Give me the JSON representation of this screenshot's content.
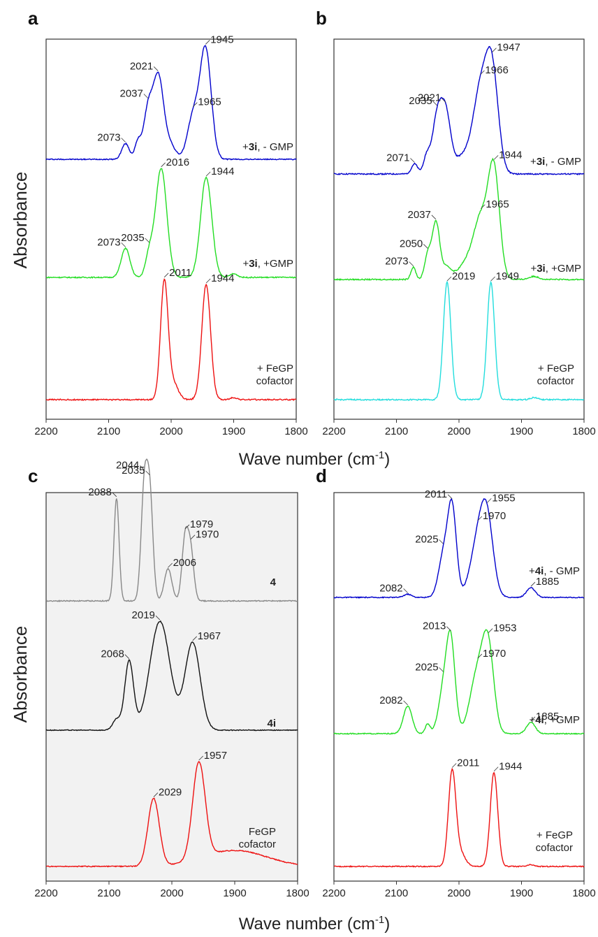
{
  "figure": {
    "ylabel_top": "Absorbance",
    "ylabel_bottom": "Absorbance",
    "xlabel_top": "Wave number (cm",
    "xlabel_bottom": "Wave number (cm",
    "xlabel_sup": "-1",
    "xlabel_close": ")"
  },
  "chart_data": [
    {
      "panel": "a",
      "type": "line",
      "xlim": [
        2200,
        1800
      ],
      "xticks": [
        2200,
        2100,
        2000,
        1900,
        1800
      ],
      "series": [
        {
          "label_parts": [
            {
              "t": "+",
              "b": false
            },
            {
              "t": "3i",
              "b": true
            },
            {
              "t": ", - GMP",
              "b": false
            }
          ],
          "color": "#0000cc",
          "peaks": [
            {
              "x": 2073,
              "h": 0.09,
              "w": 6
            },
            {
              "x": 2053,
              "h": 0.1,
              "w": 5
            },
            {
              "x": 2037,
              "h": 0.28,
              "w": 7
            },
            {
              "x": 2021,
              "h": 0.45,
              "w": 8
            },
            {
              "x": 2005,
              "h": 0.1,
              "w": 10
            },
            {
              "x": 1965,
              "h": 0.24,
              "w": 9
            },
            {
              "x": 1945,
              "h": 0.63,
              "w": 9
            }
          ],
          "annotations": [
            {
              "x": 2073,
              "text": "2073"
            },
            {
              "x": 2037,
              "text": "2037"
            },
            {
              "x": 2021,
              "text": "2021"
            },
            {
              "x": 1965,
              "text": "1965"
            },
            {
              "x": 1945,
              "text": "1945"
            }
          ]
        },
        {
          "label_parts": [
            {
              "t": "+",
              "b": false
            },
            {
              "t": "3i",
              "b": true
            },
            {
              "t": ", +GMP",
              "b": false
            }
          ],
          "color": "#22dd22",
          "peaks": [
            {
              "x": 2073,
              "h": 0.16,
              "w": 7
            },
            {
              "x": 2035,
              "h": 0.12,
              "w": 6
            },
            {
              "x": 2016,
              "h": 0.6,
              "w": 9
            },
            {
              "x": 1944,
              "h": 0.55,
              "w": 9
            },
            {
              "x": 1900,
              "h": 0.02,
              "w": 6
            }
          ],
          "annotations": [
            {
              "x": 2073,
              "text": "2073"
            },
            {
              "x": 2035,
              "text": "2035"
            },
            {
              "x": 2016,
              "text": "2016"
            },
            {
              "x": 1944,
              "text": "1944"
            }
          ]
        },
        {
          "label_parts": [
            {
              "t": "+ FeGP",
              "b": false
            },
            {
              "t": "\ncofactor",
              "b": false
            }
          ],
          "color": "#ee1111",
          "peaks": [
            {
              "x": 2011,
              "h": 0.56,
              "w": 6
            },
            {
              "x": 1997,
              "h": 0.08,
              "w": 8
            },
            {
              "x": 1944,
              "h": 0.55,
              "w": 7
            },
            {
              "x": 1900,
              "h": 0.01,
              "w": 5
            }
          ],
          "annotations": [
            {
              "x": 2011,
              "text": "2011"
            },
            {
              "x": 1944,
              "text": "1944"
            }
          ]
        }
      ]
    },
    {
      "panel": "b",
      "type": "line",
      "xlim": [
        2200,
        1800
      ],
      "xticks": [
        2200,
        2100,
        2000,
        1900,
        1800
      ],
      "series": [
        {
          "label_parts": [
            {
              "t": "+",
              "b": false
            },
            {
              "t": "3i",
              "b": true
            },
            {
              "t": ", - GMP",
              "b": false
            }
          ],
          "color": "#0000cc",
          "peaks": [
            {
              "x": 2071,
              "h": 0.05,
              "w": 5
            },
            {
              "x": 2052,
              "h": 0.08,
              "w": 5
            },
            {
              "x": 2035,
              "h": 0.27,
              "w": 8
            },
            {
              "x": 2021,
              "h": 0.28,
              "w": 8
            },
            {
              "x": 1995,
              "h": 0.08,
              "w": 12
            },
            {
              "x": 1966,
              "h": 0.4,
              "w": 12
            },
            {
              "x": 1947,
              "h": 0.48,
              "w": 10
            }
          ],
          "annotations": [
            {
              "x": 2071,
              "text": "2071"
            },
            {
              "x": 2035,
              "text": "2035"
            },
            {
              "x": 2021,
              "text": "2021"
            },
            {
              "x": 1966,
              "text": "1966"
            },
            {
              "x": 1947,
              "text": "1947"
            }
          ]
        },
        {
          "label_parts": [
            {
              "t": "+",
              "b": false
            },
            {
              "t": "3i",
              "b": true
            },
            {
              "t": ", +GMP",
              "b": false
            }
          ],
          "color": "#22dd22",
          "peaks": [
            {
              "x": 2073,
              "h": 0.06,
              "w": 4
            },
            {
              "x": 2050,
              "h": 0.12,
              "w": 5
            },
            {
              "x": 2037,
              "h": 0.28,
              "w": 6
            },
            {
              "x": 2020,
              "h": 0.06,
              "w": 8
            },
            {
              "x": 1990,
              "h": 0.07,
              "w": 12
            },
            {
              "x": 1965,
              "h": 0.3,
              "w": 12
            },
            {
              "x": 1944,
              "h": 0.52,
              "w": 9
            },
            {
              "x": 1880,
              "h": 0.015,
              "w": 8
            }
          ],
          "annotations": [
            {
              "x": 2073,
              "text": "2073"
            },
            {
              "x": 2050,
              "text": "2050"
            },
            {
              "x": 2037,
              "text": "2037"
            },
            {
              "x": 1965,
              "text": "1965"
            },
            {
              "x": 1944,
              "text": "1944"
            }
          ]
        },
        {
          "label_parts": [
            {
              "t": "+ FeGP",
              "b": false
            },
            {
              "t": "\ncofactor",
              "b": false
            }
          ],
          "color": "#22dddd",
          "peaks": [
            {
              "x": 2019,
              "h": 0.56,
              "w": 6
            },
            {
              "x": 1949,
              "h": 0.56,
              "w": 6
            },
            {
              "x": 1880,
              "h": 0.01,
              "w": 6
            }
          ],
          "annotations": [
            {
              "x": 2019,
              "text": "2019"
            },
            {
              "x": 1949,
              "text": "1949"
            }
          ]
        }
      ]
    },
    {
      "panel": "c",
      "type": "line",
      "xlim": [
        2200,
        1800
      ],
      "xticks": [
        2200,
        2100,
        2000,
        1900,
        1800
      ],
      "series": [
        {
          "label_parts": [
            {
              "t": "4",
              "b": true
            }
          ],
          "color": "#888888",
          "peaks": [
            {
              "x": 2088,
              "h": 0.64,
              "w": 4
            },
            {
              "x": 2044,
              "h": 0.68,
              "w": 5
            },
            {
              "x": 2035,
              "h": 0.64,
              "w": 5
            },
            {
              "x": 2006,
              "h": 0.2,
              "w": 6
            },
            {
              "x": 1979,
              "h": 0.38,
              "w": 5
            },
            {
              "x": 1970,
              "h": 0.3,
              "w": 5
            }
          ],
          "annotations": [
            {
              "x": 2088,
              "text": "2088"
            },
            {
              "x": 2044,
              "text": "2044"
            },
            {
              "x": 2035,
              "text": "2035"
            },
            {
              "x": 2006,
              "text": "2006"
            },
            {
              "x": 1979,
              "text": "1979"
            },
            {
              "x": 1970,
              "text": "1970"
            }
          ]
        },
        {
          "label_parts": [
            {
              "t": "4i",
              "b": true
            }
          ],
          "color": "#111111",
          "peaks": [
            {
              "x": 2088,
              "h": 0.08,
              "w": 6
            },
            {
              "x": 2068,
              "h": 0.52,
              "w": 7
            },
            {
              "x": 2019,
              "h": 0.82,
              "w": 16
            },
            {
              "x": 1967,
              "h": 0.66,
              "w": 12
            }
          ],
          "annotations": [
            {
              "x": 2068,
              "text": "2068"
            },
            {
              "x": 2019,
              "text": "2019"
            },
            {
              "x": 1967,
              "text": "1967"
            }
          ]
        },
        {
          "label_parts": [
            {
              "t": "FeGP",
              "b": false
            },
            {
              "t": "\ncofactor",
              "b": false
            }
          ],
          "color": "#ee1111",
          "peaks": [
            {
              "x": 2029,
              "h": 0.42,
              "w": 9
            },
            {
              "x": 1957,
              "h": 0.6,
              "w": 10
            },
            {
              "x": 1900,
              "h": 0.1,
              "w": 50
            }
          ],
          "annotations": [
            {
              "x": 2029,
              "text": "2029"
            },
            {
              "x": 1957,
              "text": "1957"
            }
          ]
        }
      ]
    },
    {
      "panel": "d",
      "type": "line",
      "xlim": [
        2200,
        1800
      ],
      "xticks": [
        2200,
        2100,
        2000,
        1900,
        1800
      ],
      "series": [
        {
          "label_parts": [
            {
              "t": "+",
              "b": false
            },
            {
              "t": "4i",
              "b": true
            },
            {
              "t": ", - GMP",
              "b": false
            }
          ],
          "color": "#0000cc",
          "peaks": [
            {
              "x": 2082,
              "h": 0.02,
              "w": 6
            },
            {
              "x": 2025,
              "h": 0.25,
              "w": 8
            },
            {
              "x": 2011,
              "h": 0.55,
              "w": 7
            },
            {
              "x": 1970,
              "h": 0.33,
              "w": 12
            },
            {
              "x": 1955,
              "h": 0.43,
              "w": 10
            },
            {
              "x": 1885,
              "h": 0.06,
              "w": 7
            }
          ],
          "annotations": [
            {
              "x": 2082,
              "text": "2082"
            },
            {
              "x": 2025,
              "text": "2025"
            },
            {
              "x": 2011,
              "text": "2011"
            },
            {
              "x": 1970,
              "text": "1970"
            },
            {
              "x": 1955,
              "text": "1955"
            },
            {
              "x": 1885,
              "text": "1885"
            }
          ]
        },
        {
          "label_parts": [
            {
              "t": "+",
              "b": false
            },
            {
              "t": "4i",
              "b": true
            },
            {
              "t": ", +GMP",
              "b": false
            }
          ],
          "color": "#22dd22",
          "peaks": [
            {
              "x": 2082,
              "h": 0.17,
              "w": 7
            },
            {
              "x": 2050,
              "h": 0.06,
              "w": 4
            },
            {
              "x": 2025,
              "h": 0.25,
              "w": 8
            },
            {
              "x": 2013,
              "h": 0.55,
              "w": 7
            },
            {
              "x": 1970,
              "h": 0.38,
              "w": 12
            },
            {
              "x": 1953,
              "h": 0.48,
              "w": 9
            },
            {
              "x": 1885,
              "h": 0.07,
              "w": 7
            }
          ],
          "annotations": [
            {
              "x": 2082,
              "text": "2082"
            },
            {
              "x": 2025,
              "text": "2025"
            },
            {
              "x": 2013,
              "text": "2013"
            },
            {
              "x": 1970,
              "text": "1970"
            },
            {
              "x": 1953,
              "text": "1953"
            },
            {
              "x": 1885,
              "text": "1885"
            }
          ]
        },
        {
          "label_parts": [
            {
              "t": "+ FeGP",
              "b": false
            },
            {
              "t": "\ncofactor",
              "b": false
            }
          ],
          "color": "#ee1111",
          "peaks": [
            {
              "x": 2011,
              "h": 0.56,
              "w": 6
            },
            {
              "x": 1998,
              "h": 0.08,
              "w": 8
            },
            {
              "x": 1944,
              "h": 0.56,
              "w": 6
            },
            {
              "x": 1885,
              "h": 0.01,
              "w": 5
            }
          ],
          "annotations": [
            {
              "x": 2011,
              "text": "2011"
            },
            {
              "x": 1944,
              "text": "1944"
            }
          ]
        }
      ]
    }
  ]
}
